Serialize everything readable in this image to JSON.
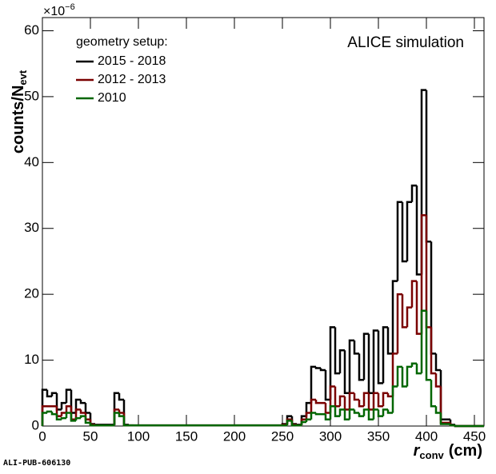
{
  "chart_data": {
    "type": "histogram",
    "ylabel": "counts/N",
    "ylabel_sub": "evt",
    "xlabel": "r",
    "xlabel_sub": "conv",
    "xlabel_unit": "(cm)",
    "y_multiplier": "×10",
    "y_multiplier_exp": "−6",
    "annotation": "ALICE simulation",
    "legend_title": "geometry setup:",
    "footer": "ALI-PUB-606130",
    "bins": [
      0,
      5,
      10,
      15,
      20,
      25,
      30,
      35,
      40,
      45,
      50,
      55,
      60,
      65,
      70,
      75,
      80,
      85,
      90,
      95,
      100,
      105,
      110,
      115,
      120,
      125,
      130,
      135,
      140,
      145,
      150,
      155,
      160,
      165,
      170,
      175,
      180,
      185,
      190,
      195,
      200,
      205,
      210,
      215,
      220,
      225,
      230,
      235,
      240,
      245,
      250,
      255,
      260,
      265,
      270,
      275,
      280,
      285,
      290,
      295,
      300,
      305,
      310,
      315,
      320,
      325,
      330,
      335,
      340,
      345,
      350,
      355,
      360,
      365,
      370,
      375,
      380,
      385,
      390,
      395,
      400,
      405,
      410,
      415,
      420,
      425,
      430,
      435,
      440,
      445,
      450,
      455,
      460
    ],
    "series": [
      {
        "name": "2015 - 2018",
        "color": "#000000",
        "values": [
          5.5,
          4.5,
          5,
          2.5,
          3.5,
          5.5,
          2,
          4,
          3.5,
          2,
          0.3,
          0.2,
          0.2,
          0.2,
          0.2,
          5,
          4,
          0.2,
          0.1,
          0.1,
          0.1,
          0.1,
          0.1,
          0.1,
          0.1,
          0.1,
          0.1,
          0.1,
          0.1,
          0.1,
          0.1,
          0.1,
          0.1,
          0.1,
          0.1,
          0.1,
          0.1,
          0.1,
          0.1,
          0.1,
          0.1,
          0.1,
          0.1,
          0.1,
          0.1,
          0.1,
          0.1,
          0.1,
          0.1,
          0.1,
          0.3,
          1.5,
          0.3,
          0.2,
          1.5,
          3.5,
          9,
          8.8,
          8.5,
          4,
          15,
          8,
          11.5,
          5,
          13,
          11,
          7,
          14,
          5,
          14.5,
          6.5,
          15,
          11,
          22,
          34,
          25,
          34,
          36.5,
          23,
          51,
          28,
          11,
          8.5,
          1,
          1,
          0.2,
          0,
          0,
          0,
          0,
          0,
          0
        ]
      },
      {
        "name": "2012 - 2013",
        "color": "#7a0000",
        "values": [
          3,
          3,
          3,
          1.5,
          2,
          3,
          1,
          2.5,
          2,
          1,
          0.2,
          0.1,
          0.1,
          0.1,
          0.1,
          2.5,
          2,
          0.1,
          0.1,
          0.1,
          0.1,
          0.1,
          0.1,
          0.1,
          0.1,
          0.1,
          0.1,
          0.1,
          0.1,
          0.1,
          0.1,
          0.1,
          0.1,
          0.1,
          0.1,
          0.1,
          0.1,
          0.1,
          0.1,
          0.1,
          0.1,
          0.1,
          0.1,
          0.1,
          0.1,
          0.1,
          0.1,
          0.1,
          0.1,
          0.1,
          0.2,
          1,
          0.2,
          0.1,
          1,
          2,
          4,
          3.5,
          3.5,
          2,
          6,
          3,
          4.5,
          2.5,
          5,
          4,
          3,
          5,
          2.5,
          5,
          3,
          5,
          4.5,
          11,
          20,
          15,
          18,
          22,
          14,
          32,
          15,
          8,
          6,
          0.5,
          0.5,
          0.1,
          0,
          0,
          0,
          0,
          0,
          0
        ]
      },
      {
        "name": "2010",
        "color": "#006600",
        "values": [
          2,
          2.2,
          1.8,
          1,
          1.2,
          2,
          0.8,
          1.2,
          1.5,
          0.5,
          0.1,
          0.1,
          0.1,
          0.1,
          0.1,
          2,
          1.5,
          0.1,
          0.1,
          0.1,
          0.1,
          0.1,
          0.1,
          0.1,
          0.1,
          0.1,
          0.1,
          0.1,
          0.1,
          0.1,
          0.1,
          0.1,
          0.1,
          0.1,
          0.1,
          0.1,
          0.1,
          0.1,
          0.1,
          0.1,
          0.1,
          0.1,
          0.1,
          0.1,
          0.1,
          0.1,
          0.1,
          0.1,
          0.1,
          0.1,
          0.1,
          0.8,
          0.1,
          0.1,
          0.6,
          1,
          2,
          1.8,
          1.8,
          1,
          3,
          1.5,
          2.5,
          1,
          2.5,
          2,
          1.5,
          2.5,
          1,
          2.5,
          1.5,
          2.5,
          2,
          6,
          9,
          6,
          9,
          9.5,
          8,
          17.5,
          7,
          3,
          2,
          0.3,
          0.3,
          0.1,
          0,
          0,
          0,
          0,
          0,
          0
        ]
      }
    ],
    "xlim": [
      0,
      460
    ],
    "xticks": [
      0,
      50,
      100,
      150,
      200,
      250,
      300,
      350,
      400,
      450
    ],
    "ylim": [
      0,
      62
    ],
    "yticks": [
      0,
      10,
      20,
      30,
      40,
      50,
      60
    ]
  }
}
